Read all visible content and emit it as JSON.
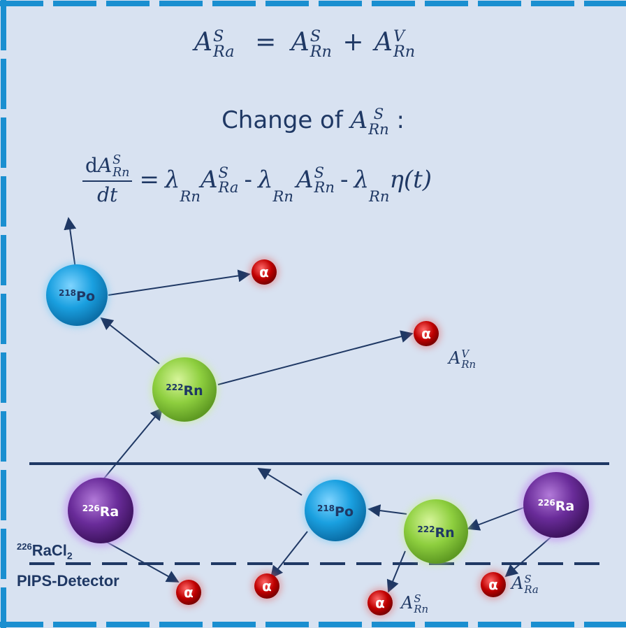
{
  "equations": {
    "balance": {
      "lhs": "A",
      "lhs_sup": "S",
      "lhs_sub": "Ra",
      "op": "=",
      "t1": "A",
      "t1_sup": "S",
      "t1_sub": "Rn",
      "plus": "+",
      "t2": "A",
      "t2_sup": "V",
      "t2_sub": "Rn"
    },
    "change_title": "Change of",
    "change_sym": "A",
    "change_sup": "S",
    "change_sub": "Rn",
    "change_colon": ":",
    "diff": {
      "num_d": "d",
      "num_a": "A",
      "num_sup": "S",
      "num_sub": "Rn",
      "den": "dt",
      "rhs_eq": "=",
      "lambda": "λ",
      "lambda_sub": "Rn",
      "a_ra": "A",
      "a_ra_sup": "S",
      "a_ra_sub": "Ra",
      "minus": "-",
      "a_rn": "A",
      "a_rn_sup": "S",
      "a_rn_sub": "Rn",
      "eta": "η(t)"
    }
  },
  "atoms": [
    {
      "id": "po218_top",
      "mass": "218",
      "symbol": "Po",
      "color": "#1aa0e0"
    },
    {
      "id": "rn222_mid",
      "mass": "222",
      "symbol": "Rn",
      "color": "#8ecf3f"
    },
    {
      "id": "ra226_left",
      "mass": "226",
      "symbol": "Ra",
      "color": "#6a2c9a"
    },
    {
      "id": "po218_low",
      "mass": "218",
      "symbol": "Po",
      "color": "#1aa0e0"
    },
    {
      "id": "rn222_low",
      "mass": "222",
      "symbol": "Rn",
      "color": "#8ecf3f"
    },
    {
      "id": "ra226_right",
      "mass": "226",
      "symbol": "Ra",
      "color": "#6a2c9a"
    }
  ],
  "alpha_symbol": "α",
  "labels": {
    "a_rn_v": {
      "base": "A",
      "sup": "V",
      "sub": "Rn"
    },
    "a_rn_s": {
      "base": "A",
      "sup": "S",
      "sub": "Rn"
    },
    "a_ra_s": {
      "base": "A",
      "sup": "S",
      "sub": "Ra"
    },
    "racl2_mass": "226",
    "racl2_text": "RaCl",
    "racl2_sub": "2",
    "detector": "PIPS-Detector"
  },
  "colors": {
    "background": "#d8e2f1",
    "ink": "#1f3864",
    "frame": "#1a8fd0",
    "alpha": "#c00000"
  }
}
